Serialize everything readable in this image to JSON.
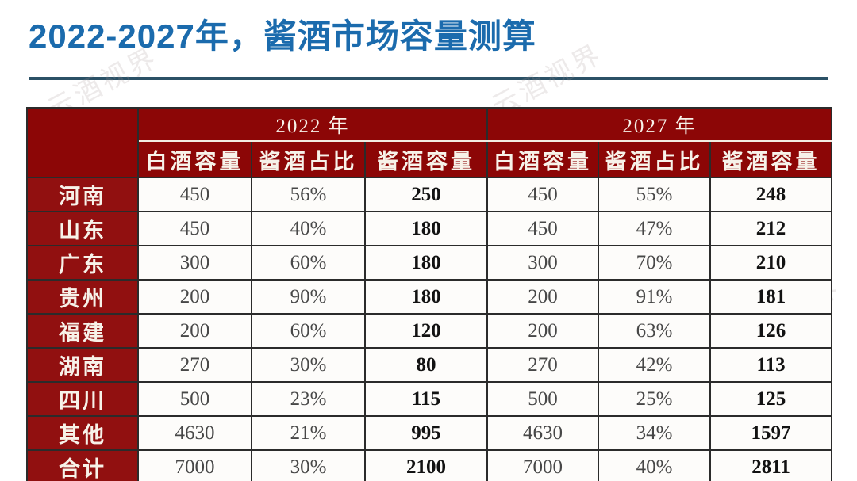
{
  "title": "2022-2027年，酱酒市场容量测算",
  "watermark": "云酒视界",
  "colors": {
    "title_blue": "#1B6BAD",
    "divider_navy": "#2B5166",
    "header_red": "#8C0606",
    "row_header_red": "#911010",
    "header_text": "#F7F2E9",
    "value_text": "#474747",
    "bold_value_text": "#121212"
  },
  "chart_data": {
    "type": "table",
    "title": "2022-2027年，酱酒市场容量测算",
    "corner_label": "",
    "year_groups": [
      {
        "label": "2022 年",
        "columns": [
          "白酒容量",
          "酱酒占比",
          "酱酒容量"
        ]
      },
      {
        "label": "2027 年",
        "columns": [
          "白酒容量",
          "酱酒占比",
          "酱酒容量"
        ]
      }
    ],
    "rows": [
      {
        "region": "河南",
        "values": [
          "450",
          "56%",
          "250",
          "450",
          "55%",
          "248"
        ]
      },
      {
        "region": "山东",
        "values": [
          "450",
          "40%",
          "180",
          "450",
          "47%",
          "212"
        ]
      },
      {
        "region": "广东",
        "values": [
          "300",
          "60%",
          "180",
          "300",
          "70%",
          "210"
        ]
      },
      {
        "region": "贵州",
        "values": [
          "200",
          "90%",
          "180",
          "200",
          "91%",
          "181"
        ]
      },
      {
        "region": "福建",
        "values": [
          "200",
          "60%",
          "120",
          "200",
          "63%",
          "126"
        ]
      },
      {
        "region": "湖南",
        "values": [
          "270",
          "30%",
          "80",
          "270",
          "42%",
          "113"
        ]
      },
      {
        "region": "四川",
        "values": [
          "500",
          "23%",
          "115",
          "500",
          "25%",
          "125"
        ]
      },
      {
        "region": "其他",
        "values": [
          "4630",
          "21%",
          "995",
          "4630",
          "34%",
          "1597"
        ]
      },
      {
        "region": "合计",
        "values": [
          "7000",
          "30%",
          "2100",
          "7000",
          "40%",
          "2811"
        ]
      }
    ],
    "notes": "values are 白酒容量 (baijiu capacity), 酱酒占比 (sauce-liquor share), 酱酒容量 (sauce-liquor capacity) for 2022 then 2027"
  }
}
